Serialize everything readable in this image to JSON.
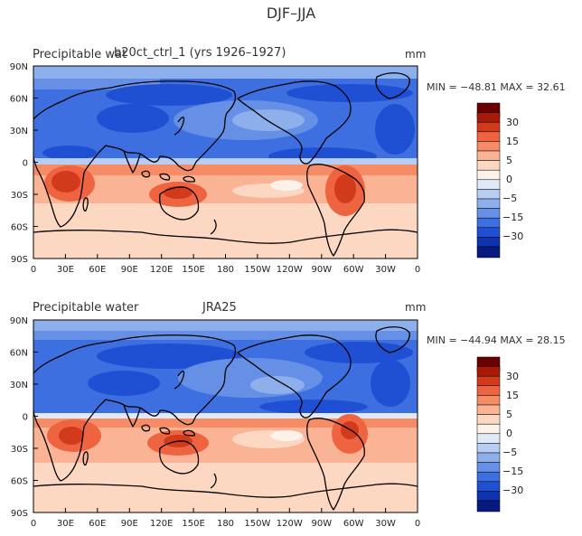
{
  "figure_title": "DJF–JJA",
  "x_tick_labels": [
    "0",
    "30E",
    "60E",
    "90E",
    "120E",
    "150E",
    "180",
    "150W",
    "120W",
    "90W",
    "60W",
    "30W",
    "0"
  ],
  "y_tick_labels": [
    "90N",
    "60N",
    "30N",
    "0",
    "30S",
    "60S",
    "90S"
  ],
  "colorbar": {
    "labels": [
      "30",
      "15",
      "5",
      "0",
      "−5",
      "−15",
      "−30"
    ],
    "colors": [
      "#6b0000",
      "#a81a08",
      "#d23a1c",
      "#ee6440",
      "#f68c66",
      "#fab394",
      "#fcd7c2",
      "#fdf2ea",
      "#dfe9f8",
      "#b8cdf2",
      "#8db0ec",
      "#6690e6",
      "#3e6fe0",
      "#1f50d4",
      "#0d33b0",
      "#061a80"
    ]
  },
  "panels": [
    {
      "id": "model",
      "title_left_a": "Precipitable wat",
      "title_left_b": "b20ct_ctrl_1 (yrs 1926–1927)",
      "units": "mm",
      "stats": "MIN = −48.81  MAX =  32.61",
      "min": -48.81,
      "max": 32.61
    },
    {
      "id": "obs",
      "title_left_a": "Precipitable water",
      "title_left_b": "JRA25",
      "units": "mm",
      "stats": "MIN = −44.94  MAX =  28.15",
      "min": -44.94,
      "max": 28.15
    }
  ]
}
